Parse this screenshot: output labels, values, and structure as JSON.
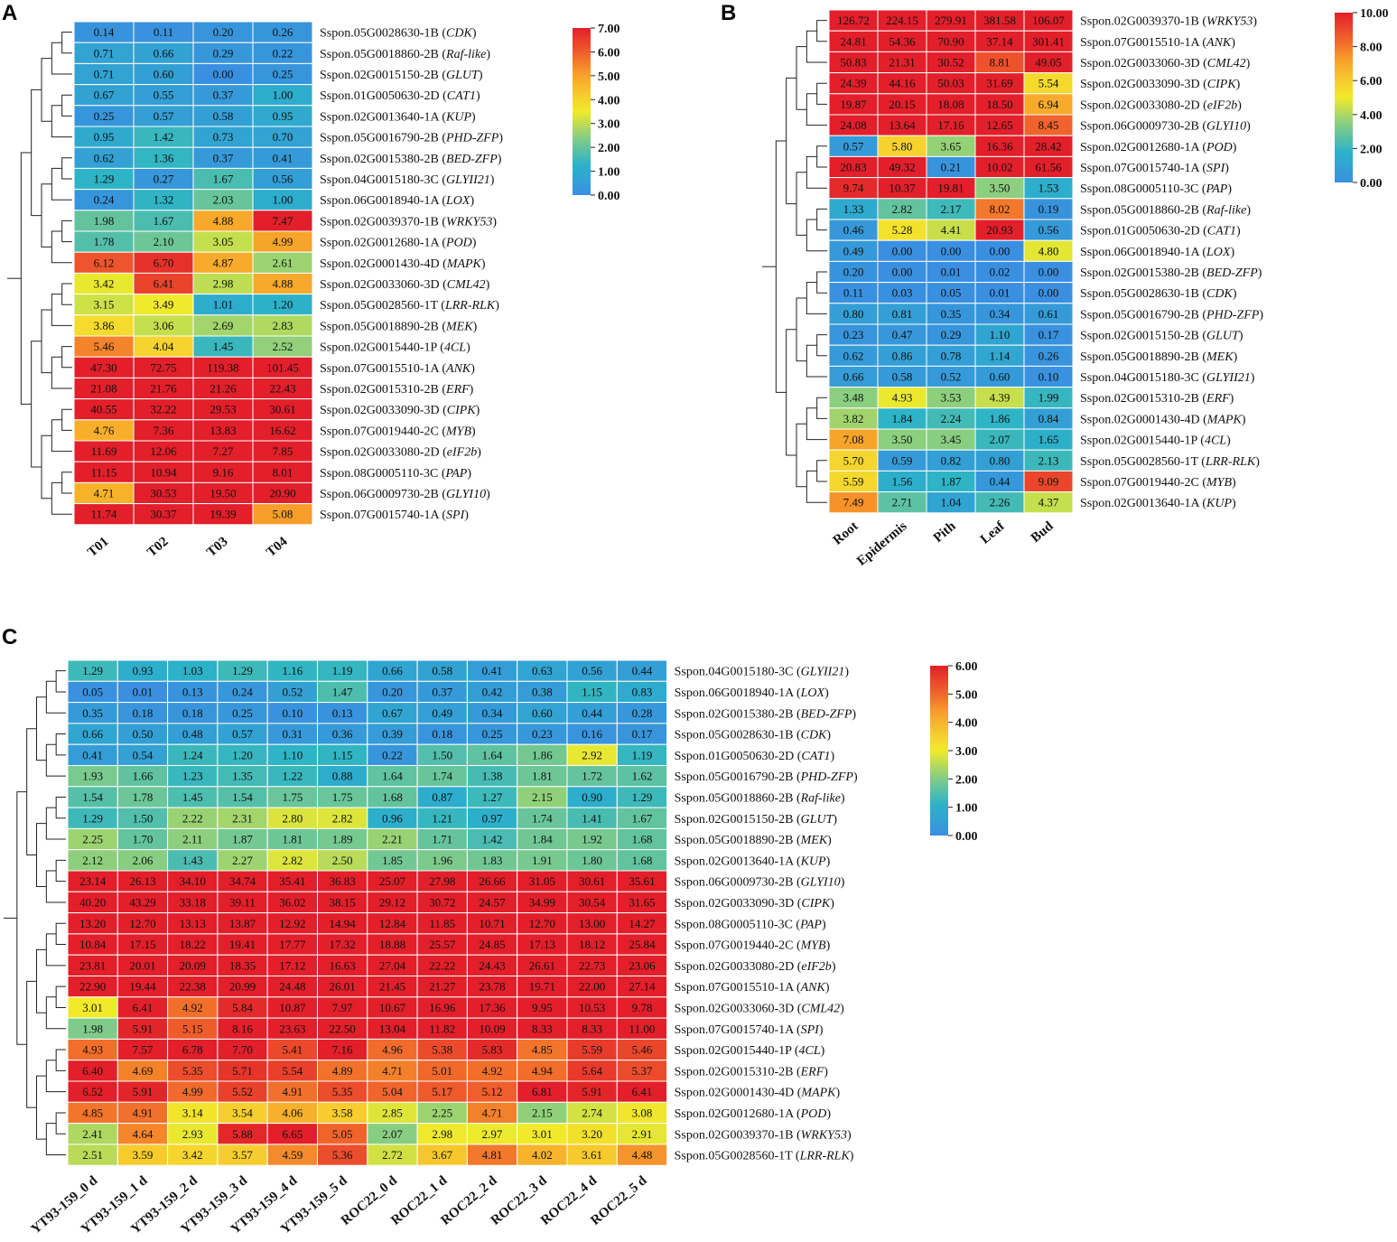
{
  "chart_data": [
    {
      "type": "heatmap",
      "panel_label": "A",
      "columns": [
        "T01",
        "T02",
        "T03",
        "T04"
      ],
      "rows": [
        {
          "id": "Sspon.05G0028630-1B",
          "gene": "CDK",
          "values": [
            0.14,
            0.11,
            0.2,
            0.26
          ]
        },
        {
          "id": "Sspon.05G0018860-2B",
          "gene": "Raf-like",
          "values": [
            0.71,
            0.66,
            0.29,
            0.22
          ]
        },
        {
          "id": "Sspon.02G0015150-2B",
          "gene": "GLUT",
          "values": [
            0.71,
            0.6,
            0.0,
            0.25
          ]
        },
        {
          "id": "Sspon.01G0050630-2D",
          "gene": "CAT1",
          "values": [
            0.67,
            0.55,
            0.37,
            1.0
          ]
        },
        {
          "id": "Sspon.02G0013640-1A",
          "gene": "KUP",
          "values": [
            0.25,
            0.57,
            0.58,
            0.95
          ]
        },
        {
          "id": "Sspon.05G0016790-2B",
          "gene": "PHD-ZFP",
          "values": [
            0.95,
            1.42,
            0.73,
            0.7
          ]
        },
        {
          "id": "Sspon.02G0015380-2B",
          "gene": "BED-ZFP",
          "values": [
            0.62,
            1.36,
            0.37,
            0.41
          ]
        },
        {
          "id": "Sspon.04G0015180-3C",
          "gene": "GLYII21",
          "values": [
            1.29,
            0.27,
            1.67,
            0.56
          ]
        },
        {
          "id": "Sspon.06G0018940-1A",
          "gene": "LOX",
          "values": [
            0.24,
            1.32,
            2.03,
            1.0
          ]
        },
        {
          "id": "Sspon.02G0039370-1B",
          "gene": "WRKY53",
          "values": [
            1.98,
            1.67,
            4.88,
            7.47
          ]
        },
        {
          "id": "Sspon.02G0012680-1A",
          "gene": "POD",
          "values": [
            1.78,
            2.1,
            3.05,
            4.99
          ]
        },
        {
          "id": "Sspon.02G0001430-4D",
          "gene": "MAPK",
          "values": [
            6.12,
            6.7,
            4.87,
            2.61
          ]
        },
        {
          "id": "Sspon.02G0033060-3D",
          "gene": "CML42",
          "values": [
            3.42,
            6.41,
            2.98,
            4.88
          ]
        },
        {
          "id": "Sspon.05G0028560-1T",
          "gene": "LRR-RLK",
          "values": [
            3.15,
            3.49,
            1.01,
            1.2
          ]
        },
        {
          "id": "Sspon.05G0018890-2B",
          "gene": "MEK",
          "values": [
            3.86,
            3.06,
            2.69,
            2.83
          ]
        },
        {
          "id": "Sspon.02G0015440-1P",
          "gene": "4CL",
          "values": [
            5.46,
            4.04,
            1.45,
            2.52
          ]
        },
        {
          "id": "Sspon.07G0015510-1A",
          "gene": "ANK",
          "values": [
            47.3,
            72.75,
            119.38,
            101.45
          ]
        },
        {
          "id": "Sspon.02G0015310-2B",
          "gene": "ERF",
          "values": [
            21.08,
            21.76,
            21.26,
            22.43
          ]
        },
        {
          "id": "Sspon.02G0033090-3D",
          "gene": "CIPK",
          "values": [
            40.55,
            32.22,
            29.53,
            30.61
          ]
        },
        {
          "id": "Sspon.07G0019440-2C",
          "gene": "MYB",
          "values": [
            4.76,
            7.36,
            13.83,
            16.62
          ]
        },
        {
          "id": "Sspon.02G0033080-2D",
          "gene": "eIF2b",
          "values": [
            11.69,
            12.06,
            7.27,
            7.85
          ]
        },
        {
          "id": "Sspon.08G0005110-3C",
          "gene": "PAP",
          "values": [
            11.15,
            10.94,
            9.16,
            8.01
          ]
        },
        {
          "id": "Sspon.06G0009730-2B",
          "gene": "GLYI10",
          "values": [
            4.71,
            30.53,
            19.5,
            20.9
          ]
        },
        {
          "id": "Sspon.07G0015740-1A",
          "gene": "SPI",
          "values": [
            11.74,
            30.37,
            19.39,
            5.08
          ]
        }
      ],
      "legend": {
        "min": 0,
        "max": 7,
        "ticks": [
          "7.00",
          "6.00",
          "5.00",
          "4.00",
          "3.00",
          "2.00",
          "1.00",
          "0.00"
        ]
      }
    },
    {
      "type": "heatmap",
      "panel_label": "B",
      "columns": [
        "Root",
        "Epidermis",
        "Pith",
        "Leaf",
        "Bud"
      ],
      "rows": [
        {
          "id": "Sspon.02G0039370-1B",
          "gene": "WRKY53",
          "values": [
            126.72,
            224.15,
            279.91,
            381.58,
            106.07
          ]
        },
        {
          "id": "Sspon.07G0015510-1A",
          "gene": "ANK",
          "values": [
            24.81,
            54.36,
            70.9,
            37.14,
            301.41
          ]
        },
        {
          "id": "Sspon.02G0033060-3D",
          "gene": "CML42",
          "values": [
            50.83,
            21.31,
            30.52,
            8.81,
            49.05
          ]
        },
        {
          "id": "Sspon.02G0033090-3D",
          "gene": "CIPK",
          "values": [
            24.39,
            44.16,
            50.03,
            31.69,
            5.54
          ]
        },
        {
          "id": "Sspon.02G0033080-2D",
          "gene": "eIF2b",
          "values": [
            19.87,
            20.15,
            18.08,
            18.5,
            6.94
          ]
        },
        {
          "id": "Sspon.06G0009730-2B",
          "gene": "GLYI10",
          "values": [
            24.08,
            13.64,
            17.16,
            12.65,
            8.45
          ]
        },
        {
          "id": "Sspon.02G0012680-1A",
          "gene": "POD",
          "values": [
            0.57,
            5.8,
            3.65,
            16.36,
            28.42
          ]
        },
        {
          "id": "Sspon.07G0015740-1A",
          "gene": "SPI",
          "values": [
            20.83,
            49.32,
            0.21,
            10.02,
            61.56
          ]
        },
        {
          "id": "Sspon.08G0005110-3C",
          "gene": "PAP",
          "values": [
            9.74,
            10.37,
            19.81,
            3.5,
            1.53
          ]
        },
        {
          "id": "Sspon.05G0018860-2B",
          "gene": "Raf-like",
          "values": [
            1.33,
            2.82,
            2.17,
            8.02,
            0.19
          ]
        },
        {
          "id": "Sspon.01G0050630-2D",
          "gene": "CAT1",
          "values": [
            0.46,
            5.28,
            4.41,
            20.93,
            0.56
          ]
        },
        {
          "id": "Sspon.06G0018940-1A",
          "gene": "LOX",
          "values": [
            0.49,
            0.0,
            0.0,
            0.0,
            4.8
          ]
        },
        {
          "id": "Sspon.02G0015380-2B",
          "gene": "BED-ZFP",
          "values": [
            0.2,
            0.0,
            0.01,
            0.02,
            0.0
          ]
        },
        {
          "id": "Sspon.05G0028630-1B",
          "gene": "CDK",
          "values": [
            0.11,
            0.03,
            0.05,
            0.01,
            0.0
          ]
        },
        {
          "id": "Sspon.05G0016790-2B",
          "gene": "PHD-ZFP",
          "values": [
            0.8,
            0.81,
            0.35,
            0.34,
            0.61
          ]
        },
        {
          "id": "Sspon.02G0015150-2B",
          "gene": "GLUT",
          "values": [
            0.23,
            0.47,
            0.29,
            1.1,
            0.17
          ]
        },
        {
          "id": "Sspon.05G0018890-2B",
          "gene": "MEK",
          "values": [
            0.62,
            0.86,
            0.78,
            1.14,
            0.26
          ]
        },
        {
          "id": "Sspon.04G0015180-3C",
          "gene": "GLYII21",
          "values": [
            0.66,
            0.58,
            0.52,
            0.6,
            0.1
          ]
        },
        {
          "id": "Sspon.02G0015310-2B",
          "gene": "ERF",
          "values": [
            3.48,
            4.93,
            3.53,
            4.39,
            1.99
          ]
        },
        {
          "id": "Sspon.02G0001430-4D",
          "gene": "MAPK",
          "values": [
            3.82,
            1.84,
            2.24,
            1.86,
            0.84
          ]
        },
        {
          "id": "Sspon.02G0015440-1P",
          "gene": "4CL",
          "values": [
            7.08,
            3.5,
            3.45,
            2.07,
            1.65
          ]
        },
        {
          "id": "Sspon.05G0028560-1T",
          "gene": "LRR-RLK",
          "values": [
            5.7,
            0.59,
            0.82,
            0.8,
            2.13
          ]
        },
        {
          "id": "Sspon.07G0019440-2C",
          "gene": "MYB",
          "values": [
            5.59,
            1.56,
            1.87,
            0.44,
            9.09
          ]
        },
        {
          "id": "Sspon.02G0013640-1A",
          "gene": "KUP",
          "values": [
            7.49,
            2.71,
            1.04,
            2.26,
            4.37
          ]
        }
      ],
      "legend": {
        "min": 0,
        "max": 10,
        "ticks": [
          "10.00",
          "8.00",
          "6.00",
          "4.00",
          "2.00",
          "0.00"
        ]
      }
    },
    {
      "type": "heatmap",
      "panel_label": "C",
      "columns": [
        "YT93-159_0 d",
        "YT93-159_1 d",
        "YT93-159_2 d",
        "YT93-159_3 d",
        "YT93-159_4 d",
        "YT93-159_5 d",
        "ROC22_0 d",
        "ROC22_1 d",
        "ROC22_2 d",
        "ROC22_3 d",
        "ROC22_4 d",
        "ROC22_5 d"
      ],
      "rows": [
        {
          "id": "Sspon.04G0015180-3C",
          "gene": "GLYII21",
          "values": [
            1.29,
            0.93,
            1.03,
            1.29,
            1.16,
            1.19,
            0.66,
            0.58,
            0.41,
            0.63,
            0.56,
            0.44
          ]
        },
        {
          "id": "Sspon.06G0018940-1A",
          "gene": "LOX",
          "values": [
            0.05,
            0.01,
            0.13,
            0.24,
            0.52,
            1.47,
            0.2,
            0.37,
            0.42,
            0.38,
            1.15,
            0.83
          ]
        },
        {
          "id": "Sspon.02G0015380-2B",
          "gene": "BED-ZFP",
          "values": [
            0.35,
            0.18,
            0.18,
            0.25,
            0.1,
            0.13,
            0.67,
            0.49,
            0.34,
            0.6,
            0.44,
            0.28
          ]
        },
        {
          "id": "Sspon.05G0028630-1B",
          "gene": "CDK",
          "values": [
            0.66,
            0.5,
            0.48,
            0.57,
            0.31,
            0.36,
            0.39,
            0.18,
            0.25,
            0.23,
            0.16,
            0.17
          ]
        },
        {
          "id": "Sspon.01G0050630-2D",
          "gene": "CAT1",
          "values": [
            0.41,
            0.54,
            1.24,
            1.2,
            1.1,
            1.15,
            0.22,
            1.5,
            1.64,
            1.86,
            2.92,
            1.19
          ]
        },
        {
          "id": "Sspon.05G0016790-2B",
          "gene": "PHD-ZFP",
          "values": [
            1.93,
            1.66,
            1.23,
            1.35,
            1.22,
            0.88,
            1.64,
            1.74,
            1.38,
            1.81,
            1.72,
            1.62
          ]
        },
        {
          "id": "Sspon.05G0018860-2B",
          "gene": "Raf-like",
          "values": [
            1.54,
            1.78,
            1.45,
            1.54,
            1.75,
            1.75,
            1.68,
            0.87,
            1.27,
            2.15,
            0.9,
            1.29
          ]
        },
        {
          "id": "Sspon.02G0015150-2B",
          "gene": "GLUT",
          "values": [
            1.29,
            1.5,
            2.22,
            2.31,
            2.8,
            2.82,
            0.96,
            1.21,
            0.97,
            1.74,
            1.41,
            1.67
          ]
        },
        {
          "id": "Sspon.05G0018890-2B",
          "gene": "MEK",
          "values": [
            2.25,
            1.7,
            2.11,
            1.87,
            1.81,
            1.89,
            2.21,
            1.71,
            1.42,
            1.84,
            1.92,
            1.68
          ]
        },
        {
          "id": "Sspon.02G0013640-1A",
          "gene": "KUP",
          "values": [
            2.12,
            2.06,
            1.43,
            2.27,
            2.82,
            2.5,
            1.85,
            1.96,
            1.83,
            1.91,
            1.8,
            1.68
          ]
        },
        {
          "id": "Sspon.06G0009730-2B",
          "gene": "GLYI10",
          "values": [
            23.14,
            26.13,
            34.1,
            34.74,
            35.41,
            36.83,
            25.07,
            27.98,
            26.66,
            31.05,
            30.61,
            35.61
          ]
        },
        {
          "id": "Sspon.02G0033090-3D",
          "gene": "CIPK",
          "values": [
            40.2,
            43.29,
            33.18,
            39.11,
            36.02,
            38.15,
            29.12,
            30.72,
            24.57,
            34.99,
            30.54,
            31.65
          ]
        },
        {
          "id": "Sspon.08G0005110-3C",
          "gene": "PAP",
          "values": [
            13.2,
            12.7,
            13.13,
            13.87,
            12.92,
            14.94,
            12.84,
            11.85,
            10.71,
            12.7,
            13.0,
            14.27
          ]
        },
        {
          "id": "Sspon.07G0019440-2C",
          "gene": "MYB",
          "values": [
            10.84,
            17.15,
            18.22,
            19.41,
            17.77,
            17.32,
            18.88,
            25.57,
            24.85,
            17.13,
            18.12,
            25.84
          ]
        },
        {
          "id": "Sspon.02G0033080-2D",
          "gene": "eIF2b",
          "values": [
            23.81,
            20.01,
            20.09,
            18.35,
            17.12,
            16.63,
            27.04,
            22.22,
            24.43,
            26.61,
            22.73,
            23.06
          ]
        },
        {
          "id": "Sspon.07G0015510-1A",
          "gene": "ANK",
          "values": [
            22.9,
            19.44,
            22.38,
            20.99,
            24.48,
            26.01,
            21.45,
            21.27,
            23.78,
            19.71,
            22.0,
            27.14
          ]
        },
        {
          "id": "Sspon.02G0033060-3D",
          "gene": "CML42",
          "values": [
            3.01,
            6.41,
            4.92,
            5.84,
            10.87,
            7.97,
            10.67,
            16.96,
            17.36,
            9.95,
            10.53,
            9.78
          ]
        },
        {
          "id": "Sspon.07G0015740-1A",
          "gene": "SPI",
          "values": [
            1.98,
            5.91,
            5.15,
            8.16,
            23.63,
            22.5,
            13.04,
            11.82,
            10.09,
            8.33,
            8.33,
            11.0
          ]
        },
        {
          "id": "Sspon.02G0015440-1P",
          "gene": "4CL",
          "values": [
            4.93,
            7.57,
            6.78,
            7.7,
            5.41,
            7.16,
            4.96,
            5.38,
            5.83,
            4.85,
            5.59,
            5.46
          ]
        },
        {
          "id": "Sspon.02G0015310-2B",
          "gene": "ERF",
          "values": [
            6.4,
            4.69,
            5.35,
            5.71,
            5.54,
            4.89,
            4.71,
            5.01,
            4.92,
            4.94,
            5.64,
            5.37
          ]
        },
        {
          "id": "Sspon.02G0001430-4D",
          "gene": "MAPK",
          "values": [
            6.52,
            5.91,
            4.99,
            5.52,
            4.91,
            5.35,
            5.04,
            5.17,
            5.12,
            6.81,
            5.91,
            6.41
          ]
        },
        {
          "id": "Sspon.02G0012680-1A",
          "gene": "POD",
          "values": [
            4.85,
            4.91,
            3.14,
            3.54,
            4.06,
            3.58,
            2.85,
            2.25,
            4.71,
            2.15,
            2.74,
            3.08
          ]
        },
        {
          "id": "Sspon.02G0039370-1B",
          "gene": "WRKY53",
          "values": [
            2.41,
            4.64,
            2.93,
            5.88,
            6.65,
            5.05,
            2.07,
            2.98,
            2.97,
            3.01,
            3.2,
            2.91
          ]
        },
        {
          "id": "Sspon.05G0028560-1T",
          "gene": "LRR-RLK",
          "values": [
            2.51,
            3.59,
            3.42,
            3.57,
            4.59,
            5.36,
            2.72,
            3.67,
            4.81,
            4.02,
            3.61,
            4.48
          ]
        }
      ],
      "legend": {
        "min": 0,
        "max": 6,
        "ticks": [
          "6.00",
          "5.00",
          "4.00",
          "3.00",
          "2.00",
          "1.00",
          "0.00"
        ]
      }
    }
  ]
}
